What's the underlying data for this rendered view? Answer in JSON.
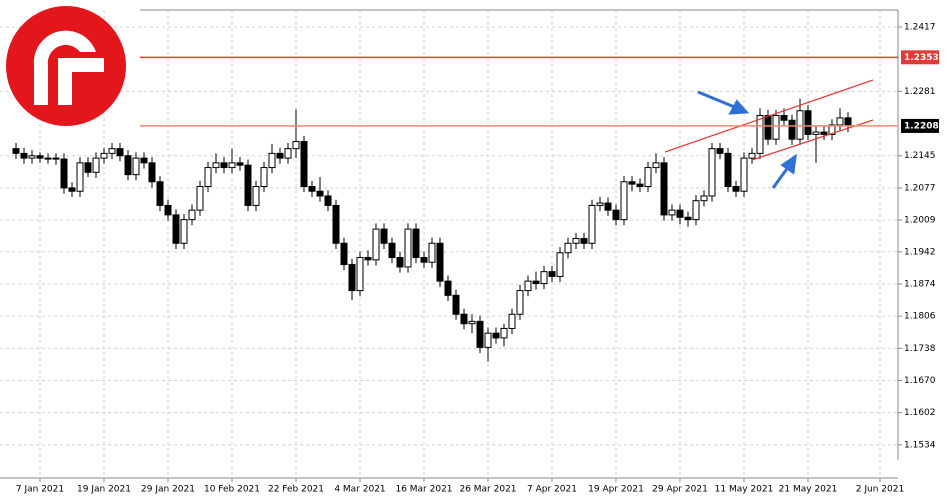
{
  "chart_data": {
    "type": "candlestick",
    "categories": [
      null,
      null,
      null,
      "7 Jan 2021",
      null,
      null,
      null,
      null,
      null,
      null,
      null,
      "19 Jan 2021",
      null,
      null,
      null,
      null,
      null,
      null,
      null,
      "29 Jan 2021",
      null,
      null,
      null,
      null,
      null,
      null,
      null,
      "10 Feb 2021",
      null,
      null,
      null,
      null,
      null,
      null,
      null,
      "22 Feb 2021",
      null,
      null,
      null,
      null,
      null,
      null,
      null,
      "4 Mar 2021",
      null,
      null,
      null,
      null,
      null,
      null,
      null,
      "16 Mar 2021",
      null,
      null,
      null,
      null,
      null,
      null,
      null,
      "26 Mar 2021",
      null,
      null,
      null,
      null,
      null,
      null,
      null,
      "7 Apr 2021",
      null,
      null,
      null,
      null,
      null,
      null,
      null,
      "19 Apr 2021",
      null,
      null,
      null,
      null,
      null,
      null,
      null,
      "29 Apr 2021",
      null,
      null,
      null,
      null,
      null,
      null,
      null,
      "11 May 2021",
      null,
      null,
      null,
      null,
      null,
      null,
      null,
      "21 May 2021",
      null,
      null,
      null,
      null,
      null,
      null,
      null,
      null,
      "2 Jun 2021"
    ],
    "open": [
      1.216,
      1.215,
      1.214,
      1.2145,
      1.214,
      1.214,
      1.2138,
      1.2077,
      1.207,
      1.213,
      1.211,
      1.214,
      1.215,
      1.216,
      1.2145,
      1.2105,
      1.214,
      1.213,
      1.209,
      1.204,
      1.202,
      1.196,
      1.201,
      1.203,
      1.208,
      1.212,
      1.213,
      1.212,
      1.213,
      1.2125,
      1.204,
      1.208,
      1.212,
      1.215,
      1.214,
      1.216,
      1.2175,
      1.208,
      1.207,
      1.206,
      1.204,
      1.196,
      1.1915,
      1.186,
      1.193,
      1.1925,
      1.199,
      1.196,
      1.193,
      1.191,
      1.199,
      1.193,
      1.192,
      1.196,
      1.188,
      1.185,
      1.181,
      1.179,
      1.1795,
      1.174,
      1.177,
      1.176,
      1.178,
      1.181,
      1.186,
      1.188,
      1.1875,
      1.19,
      1.189,
      1.194,
      1.196,
      1.197,
      1.196,
      1.204,
      1.2045,
      1.203,
      1.201,
      1.209,
      1.2085,
      1.208,
      1.212,
      1.213,
      1.202,
      1.203,
      1.2015,
      1.201,
      1.205,
      1.206,
      1.216,
      1.215,
      1.208,
      1.207,
      1.214,
      1.215,
      1.223,
      1.218,
      1.223,
      1.222,
      1.218,
      1.224,
      1.219,
      1.2195,
      1.219,
      1.221,
      1.2225,
      null,
      null,
      null,
      null
    ],
    "high": [
      1.2172,
      1.2162,
      1.2157,
      1.2152,
      1.215,
      1.215,
      1.215,
      1.2089,
      1.2142,
      1.2142,
      1.2152,
      1.2162,
      1.2172,
      1.2172,
      1.2157,
      1.2152,
      1.2152,
      1.2142,
      1.2102,
      1.2052,
      1.2032,
      1.2022,
      1.2042,
      1.2092,
      1.2132,
      1.215,
      1.2142,
      1.216,
      1.2142,
      1.2137,
      1.2092,
      1.2132,
      1.217,
      1.2162,
      1.2172,
      1.2243,
      1.2187,
      1.2092,
      1.21,
      1.2072,
      1.2052,
      1.1972,
      1.1927,
      1.1942,
      1.1945,
      1.2002,
      1.2002,
      1.1972,
      1.1942,
      1.2002,
      1.2002,
      1.1942,
      1.1972,
      1.1972,
      1.1892,
      1.1862,
      1.1822,
      1.181,
      1.1807,
      1.1782,
      1.1782,
      1.179,
      1.1822,
      1.1872,
      1.1892,
      1.19,
      1.1912,
      1.1912,
      1.1952,
      1.1972,
      1.1982,
      1.1982,
      1.2052,
      1.2058,
      1.2057,
      1.2042,
      1.2102,
      1.2102,
      1.2097,
      1.2132,
      1.215,
      1.2142,
      1.2042,
      1.2042,
      1.2027,
      1.2062,
      1.2072,
      1.2172,
      1.2172,
      1.2162,
      1.2092,
      1.2152,
      1.2162,
      1.2245,
      1.2242,
      1.2242,
      1.2245,
      1.2232,
      1.2266,
      1.2252,
      1.2207,
      1.2207,
      1.2222,
      1.2245,
      1.2237,
      null,
      null,
      null,
      null
    ],
    "low": [
      1.2138,
      1.2128,
      1.2128,
      1.213,
      1.2128,
      1.2126,
      1.2065,
      1.2058,
      1.2058,
      1.21,
      1.2098,
      1.2128,
      1.2138,
      1.2133,
      1.2093,
      1.2093,
      1.2118,
      1.2078,
      1.2028,
      1.2008,
      1.1948,
      1.1948,
      1.1998,
      1.2018,
      1.2068,
      1.2108,
      1.2108,
      1.2108,
      1.2113,
      1.2028,
      1.2028,
      1.2068,
      1.2108,
      1.2128,
      1.2128,
      1.214,
      1.2068,
      1.2058,
      1.2048,
      1.2028,
      1.1948,
      1.1903,
      1.184,
      1.1848,
      1.1913,
      1.1913,
      1.1948,
      1.1918,
      1.1898,
      1.1898,
      1.1918,
      1.1908,
      1.1908,
      1.1868,
      1.1838,
      1.1798,
      1.1778,
      1.177,
      1.1728,
      1.171,
      1.1748,
      1.1742,
      1.1768,
      1.1798,
      1.1848,
      1.1862,
      1.1863,
      1.1878,
      1.1878,
      1.1928,
      1.1948,
      1.1948,
      1.1948,
      1.2028,
      1.2018,
      1.1998,
      1.1998,
      1.207,
      1.2068,
      1.2068,
      1.2108,
      1.2008,
      1.2008,
      1.2,
      1.1995,
      1.1998,
      1.2038,
      1.2048,
      1.2138,
      1.2068,
      1.2058,
      1.2058,
      1.2128,
      1.2138,
      1.2168,
      1.2168,
      1.2208,
      1.2168,
      1.2168,
      1.2178,
      1.213,
      1.2178,
      1.2178,
      1.2198,
      1.2195,
      null,
      null,
      null,
      null
    ],
    "close": [
      1.215,
      1.214,
      1.2145,
      1.214,
      1.214,
      1.2138,
      1.2077,
      1.207,
      1.213,
      1.211,
      1.214,
      1.215,
      1.216,
      1.2145,
      1.2105,
      1.214,
      1.213,
      1.209,
      1.204,
      1.202,
      1.196,
      1.201,
      1.203,
      1.208,
      1.212,
      1.213,
      1.212,
      1.213,
      1.2125,
      1.204,
      1.208,
      1.212,
      1.215,
      1.214,
      1.216,
      1.2175,
      1.208,
      1.207,
      1.206,
      1.204,
      1.196,
      1.1915,
      1.186,
      1.193,
      1.1925,
      1.199,
      1.196,
      1.193,
      1.191,
      1.199,
      1.193,
      1.192,
      1.196,
      1.188,
      1.185,
      1.181,
      1.179,
      1.1795,
      1.174,
      1.177,
      1.176,
      1.178,
      1.181,
      1.186,
      1.188,
      1.1875,
      1.19,
      1.189,
      1.194,
      1.196,
      1.197,
      1.196,
      1.204,
      1.2045,
      1.203,
      1.201,
      1.209,
      1.2085,
      1.208,
      1.212,
      1.213,
      1.202,
      1.203,
      1.2015,
      1.201,
      1.205,
      1.206,
      1.216,
      1.215,
      1.208,
      1.207,
      1.214,
      1.215,
      1.223,
      1.218,
      1.223,
      1.222,
      1.218,
      1.224,
      1.219,
      1.2195,
      1.219,
      1.221,
      1.2225,
      1.2208,
      null,
      null,
      null,
      null
    ],
    "up_color": "#ffffff",
    "down_color": "#000000",
    "ylim": [
      1.1502,
      1.2453
    ],
    "yticks": [
      1.2417,
      1.2281,
      1.2145,
      1.2077,
      1.2009,
      1.1942,
      1.1874,
      1.1806,
      1.1738,
      {
        "value": 1.167,
        "label": "1.1670"
      },
      1.1602,
      1.1534
    ],
    "grid": true,
    "levels": [
      {
        "value": 1.2353,
        "color": "#e53935",
        "label_color": "#e53935"
      },
      {
        "value": 1.2208,
        "color": "#f08a6c",
        "label_color": "#000000"
      }
    ]
  }
}
